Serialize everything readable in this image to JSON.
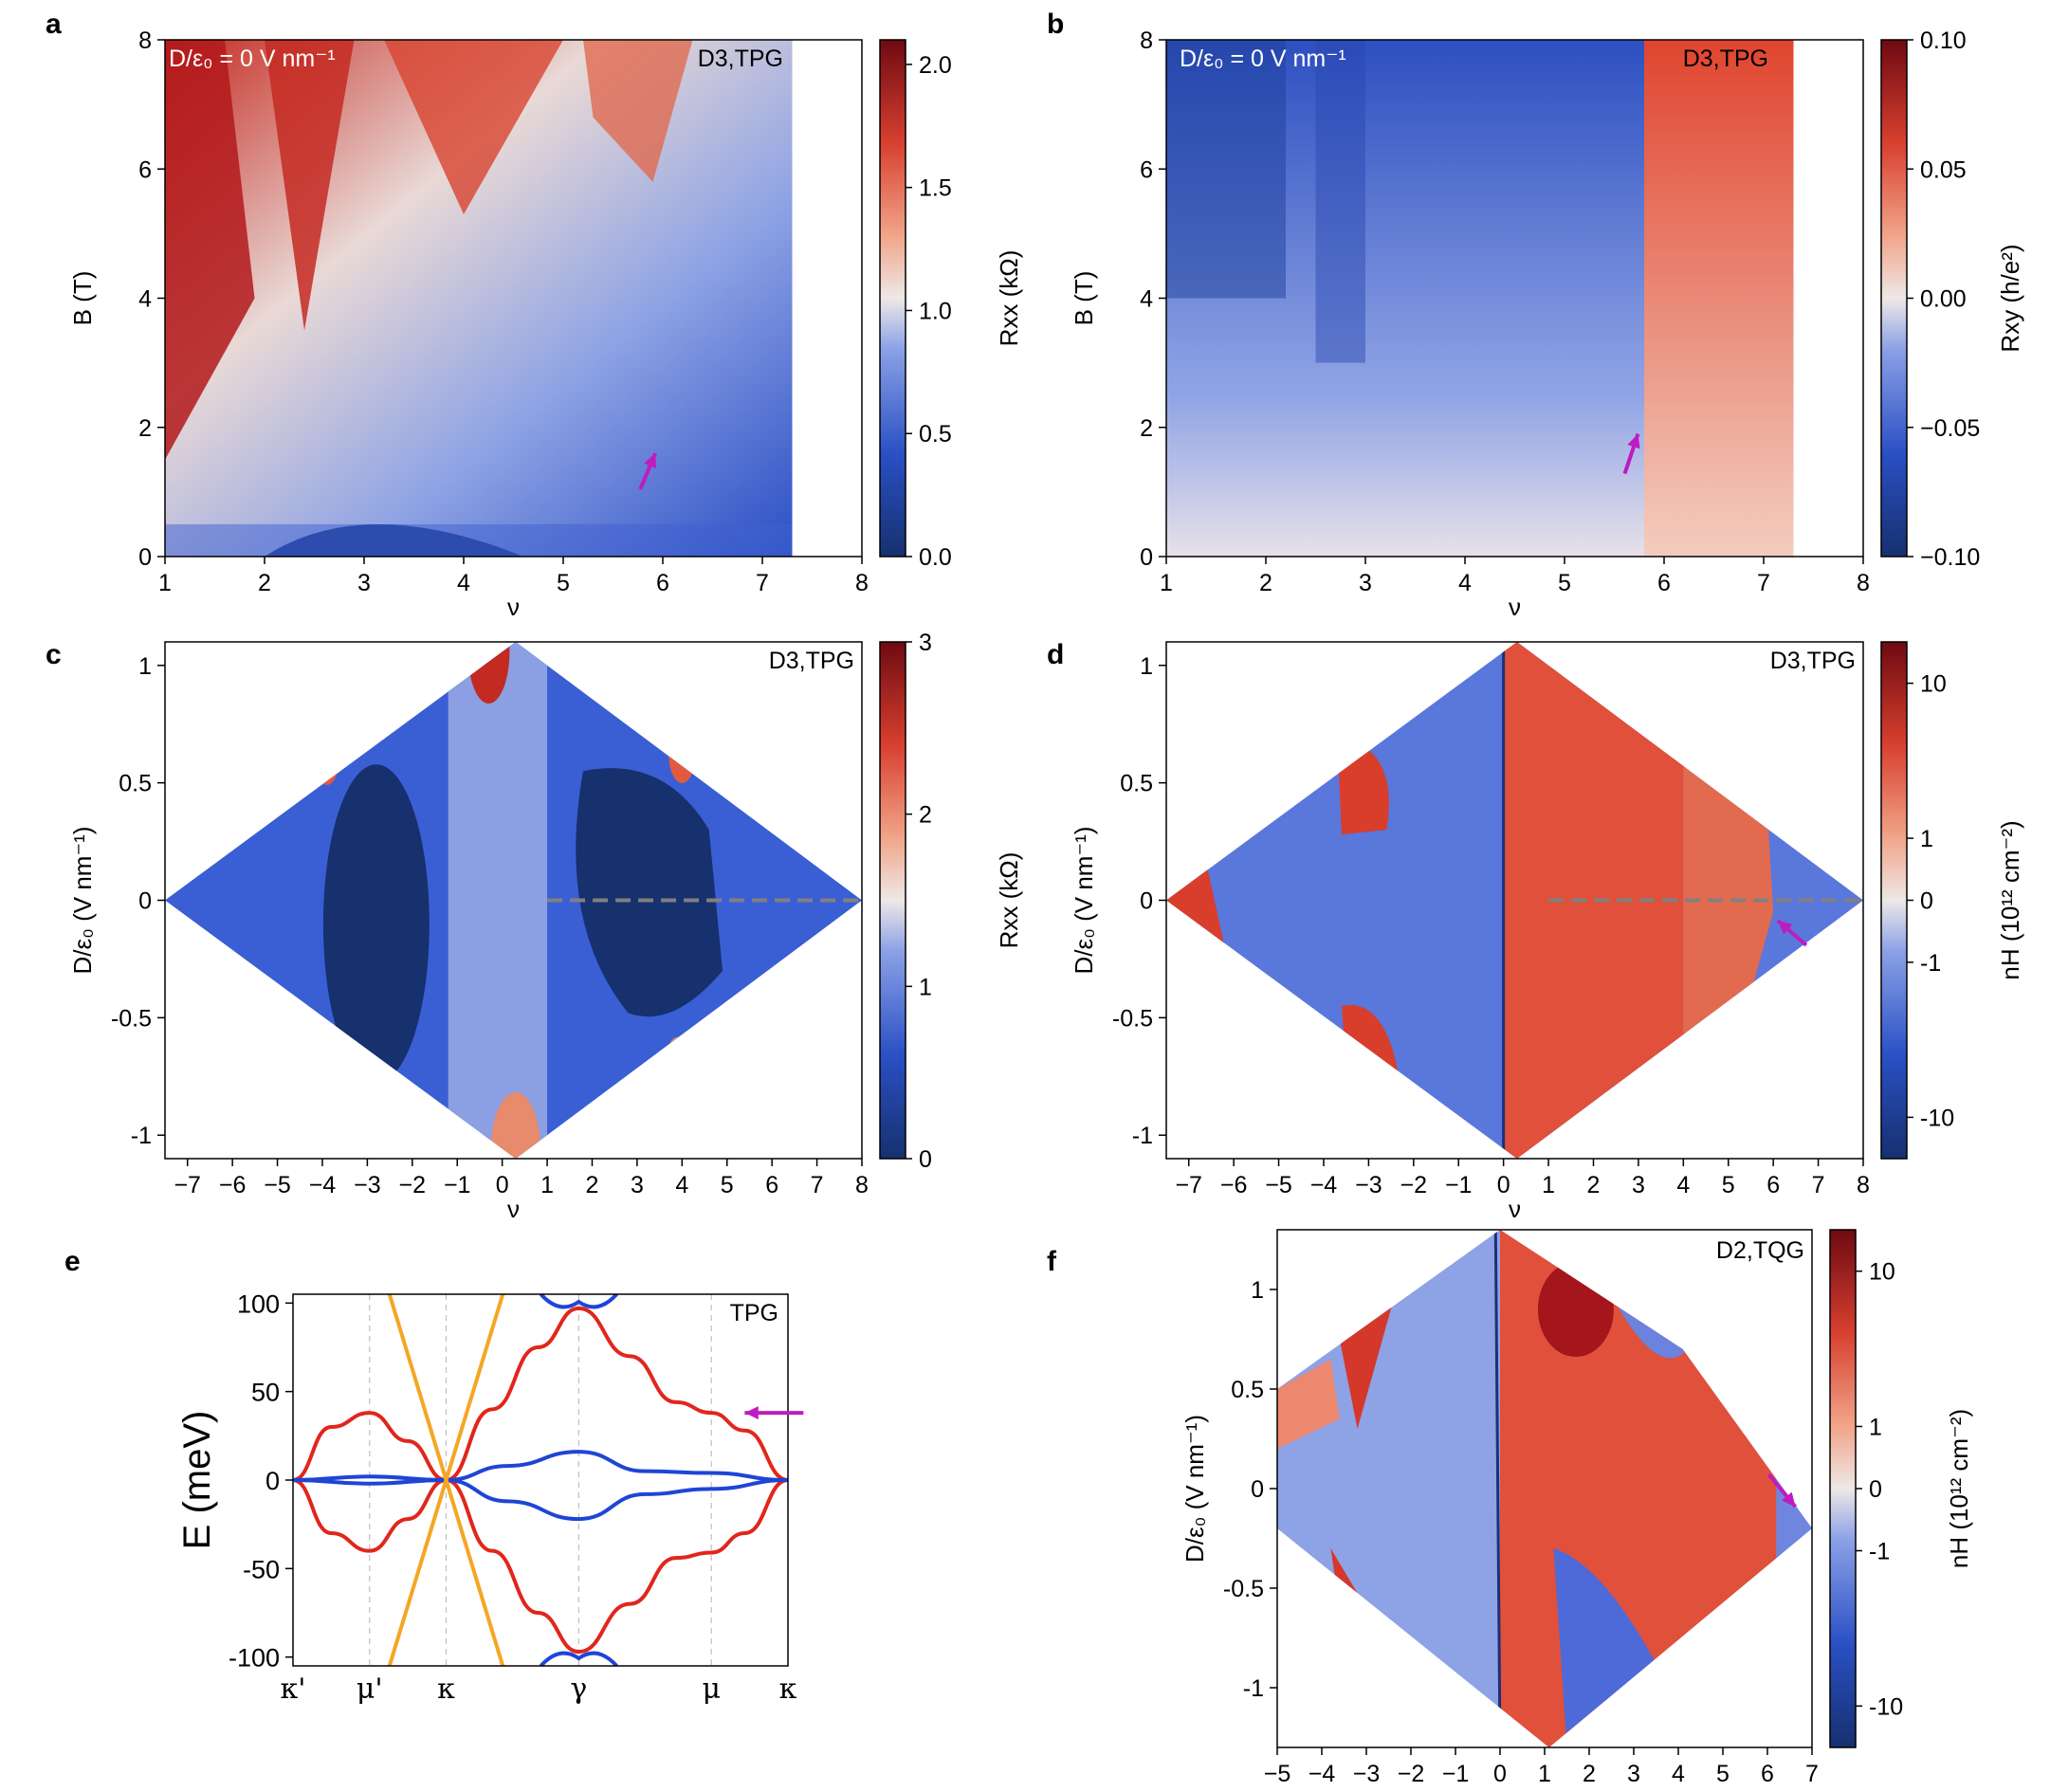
{
  "figure_labels": [
    "a",
    "b",
    "c",
    "d",
    "e",
    "f"
  ],
  "colors": {
    "accent_arrow": "#c01bc0",
    "cmap_low": "#16306f",
    "cmap_mid": "#eee8e6",
    "cmap_high": "#6e0a12",
    "dashed_line": "#808080",
    "band_red": "#e1261c",
    "band_blue": "#1f45d6",
    "band_orange": "#f5a623"
  },
  "chart_data": [
    {
      "panel": "a",
      "type": "heatmap",
      "tag": "D3,TPG",
      "annotation": "D/ε₀ = 0 V nm⁻¹",
      "xlabel": "ν",
      "ylabel": "B (T)",
      "xlim": [
        1,
        8
      ],
      "ylim": [
        0,
        8
      ],
      "xticks": [
        "1",
        "2",
        "3",
        "4",
        "5",
        "6",
        "7",
        "8"
      ],
      "yticks": [
        "0",
        "2",
        "4",
        "6",
        "8"
      ],
      "data_extent_x": [
        1,
        7.3
      ],
      "colorbar": {
        "label": "Rxx (kΩ)",
        "range": [
          0,
          2.1
        ],
        "ticks": [
          "0.0",
          "0.5",
          "1.0",
          "1.5",
          "2.0"
        ]
      },
      "arrow": {
        "nu": 5.85,
        "B": 1.6
      }
    },
    {
      "panel": "b",
      "type": "heatmap",
      "tag": "D3,TPG",
      "annotation": "D/ε₀ = 0 V nm⁻¹",
      "xlabel": "ν",
      "ylabel": "B (T)",
      "xlim": [
        1,
        8
      ],
      "ylim": [
        0,
        8
      ],
      "xticks": [
        "1",
        "2",
        "3",
        "4",
        "5",
        "6",
        "7",
        "8"
      ],
      "yticks": [
        "0",
        "2",
        "4",
        "6",
        "8"
      ],
      "data_extent_x": [
        1,
        7.3
      ],
      "colorbar": {
        "label": "Rxy (h/e²)",
        "range": [
          -0.1,
          0.1
        ],
        "ticks": [
          "−0.10",
          "−0.05",
          "0.00",
          "0.05",
          "0.10"
        ]
      },
      "arrow": {
        "nu": 5.7,
        "B": 1.9
      }
    },
    {
      "panel": "c",
      "type": "heatmap",
      "tag": "D3,TPG",
      "xlabel": "ν",
      "ylabel": "D/ε₀ (V nm⁻¹)",
      "xlim": [
        -7.5,
        8
      ],
      "ylim": [
        -1.1,
        1.1
      ],
      "xticks": [
        "−7",
        "−6",
        "−5",
        "−4",
        "−3",
        "−2",
        "−1",
        "0",
        "1",
        "2",
        "3",
        "4",
        "5",
        "6",
        "7",
        "8"
      ],
      "yticks": [
        "-1",
        "-0.5",
        "0",
        "0.5",
        "1"
      ],
      "colorbar": {
        "label": "Rxx (kΩ)",
        "range": [
          0,
          3
        ],
        "ticks": [
          "0",
          "1",
          "2",
          "3"
        ]
      },
      "dashed_line": {
        "nu_from": 1,
        "nu_to": 8,
        "D": 0
      }
    },
    {
      "panel": "d",
      "type": "heatmap",
      "tag": "D3,TPG",
      "xlabel": "ν",
      "ylabel": "D/ε₀ (V nm⁻¹)",
      "xlim": [
        -7.5,
        8
      ],
      "ylim": [
        -1.1,
        1.1
      ],
      "xticks": [
        "−7",
        "−6",
        "−5",
        "−4",
        "−3",
        "−2",
        "−1",
        "0",
        "1",
        "2",
        "3",
        "4",
        "5",
        "6",
        "7",
        "8"
      ],
      "yticks": [
        "-1",
        "-0.5",
        "0",
        "0.5",
        "1"
      ],
      "colorbar": {
        "label": "nH (10¹² cm⁻²)",
        "scale": "symlog",
        "ticks": [
          "-10",
          "-1",
          "0",
          "1",
          "10"
        ]
      },
      "dashed_line": {
        "nu_from": 1,
        "nu_to": 8,
        "D": 0
      },
      "arrow": {
        "nu": 6.1,
        "D": -0.07
      }
    },
    {
      "panel": "e",
      "type": "line",
      "tag": "TPG",
      "ylabel": "E (meV)",
      "ylim": [
        -105,
        105
      ],
      "yticks": [
        "-100",
        "-50",
        "0",
        "50",
        "100"
      ],
      "kpoints": [
        "κ'",
        "μ'",
        "κ",
        "γ",
        "μ",
        "κ"
      ],
      "kpoint_positions": [
        0,
        0.5,
        1.0,
        1.866,
        2.732,
        3.232
      ],
      "series": [
        {
          "name": "red-upper",
          "color": "red",
          "x": [
            0,
            0.25,
            0.5,
            0.75,
            1.0,
            1.3,
            1.6,
            1.866,
            2.2,
            2.5,
            2.732,
            2.95,
            3.232
          ],
          "y": [
            0,
            30,
            38,
            22,
            0,
            40,
            75,
            97,
            70,
            44,
            38,
            28,
            0
          ]
        },
        {
          "name": "red-lower",
          "color": "red",
          "x": [
            0,
            0.25,
            0.5,
            0.75,
            1.0,
            1.3,
            1.6,
            1.866,
            2.2,
            2.5,
            2.732,
            2.95,
            3.232
          ],
          "y": [
            0,
            -30,
            -40,
            -22,
            0,
            -40,
            -75,
            -97,
            -70,
            -44,
            -41,
            -30,
            0
          ]
        },
        {
          "name": "blue-upper",
          "color": "blue",
          "x": [
            0,
            0.5,
            1.0,
            1.4,
            1.866,
            2.3,
            2.732,
            3.232
          ],
          "y": [
            0,
            2,
            0,
            8,
            16,
            5,
            4,
            0
          ]
        },
        {
          "name": "blue-lower",
          "color": "blue",
          "x": [
            0,
            0.5,
            1.0,
            1.4,
            1.866,
            2.3,
            2.732,
            3.232
          ],
          "y": [
            0,
            -2,
            0,
            -12,
            -22,
            -8,
            -5,
            0
          ]
        },
        {
          "name": "orange-1",
          "color": "orange",
          "x": [
            0.63,
            1.37
          ],
          "y": [
            -105,
            105
          ]
        },
        {
          "name": "orange-2",
          "color": "orange",
          "x": [
            0.63,
            1.37
          ],
          "y": [
            105,
            -105
          ]
        }
      ],
      "arrow": {
        "k": 2.9,
        "E": 38
      }
    },
    {
      "panel": "f",
      "type": "heatmap",
      "tag": "D2,TQG",
      "xlabel": "ν",
      "ylabel": "D/ε₀ (V nm⁻¹)",
      "xlim": [
        -5,
        7
      ],
      "ylim": [
        -1.3,
        1.3
      ],
      "xticks": [
        "−5",
        "−4",
        "−3",
        "−2",
        "−1",
        "0",
        "1",
        "2",
        "3",
        "4",
        "5",
        "6",
        "7"
      ],
      "yticks": [
        "-1",
        "-0.5",
        "0",
        "0.5",
        "1"
      ],
      "colorbar": {
        "label": "nH (10¹² cm⁻²)",
        "scale": "symlog",
        "ticks": [
          "-10",
          "-1",
          "0",
          "1",
          "10"
        ]
      },
      "arrow": {
        "nu": 6.5,
        "D": -0.12
      }
    }
  ]
}
